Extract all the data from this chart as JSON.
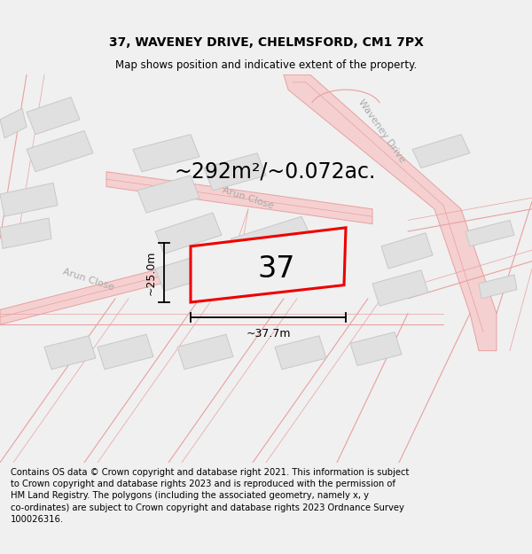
{
  "title_line1": "37, WAVENEY DRIVE, CHELMSFORD, CM1 7PX",
  "title_line2": "Map shows position and indicative extent of the property.",
  "area_text": "~292m²/~0.072ac.",
  "property_number": "37",
  "dim_width": "~37.7m",
  "dim_height": "~25.0m",
  "footer_text": "Contains OS data © Crown copyright and database right 2021. This information is subject to Crown copyright and database rights 2023 and is reproduced with the permission of HM Land Registry. The polygons (including the associated geometry, namely x, y co-ordinates) are subject to Crown copyright and database rights 2023 Ordnance Survey 100026316.",
  "bg_color": "#f0f0f0",
  "map_bg": "#ffffff",
  "road_line_color": "#e8a0a0",
  "road_fill_color": "#f5d0d0",
  "block_color": "#e0e0e0",
  "block_stroke": "#c8c8c8",
  "property_fill": "#f0f0f0",
  "property_stroke": "#ee0000",
  "title_fontsize": 10,
  "subtitle_fontsize": 8.5,
  "area_fontsize": 17,
  "number_fontsize": 24,
  "dim_fontsize": 9,
  "footer_fontsize": 7.2,
  "label_color": "#aaaaaa",
  "label_fontsize": 8
}
